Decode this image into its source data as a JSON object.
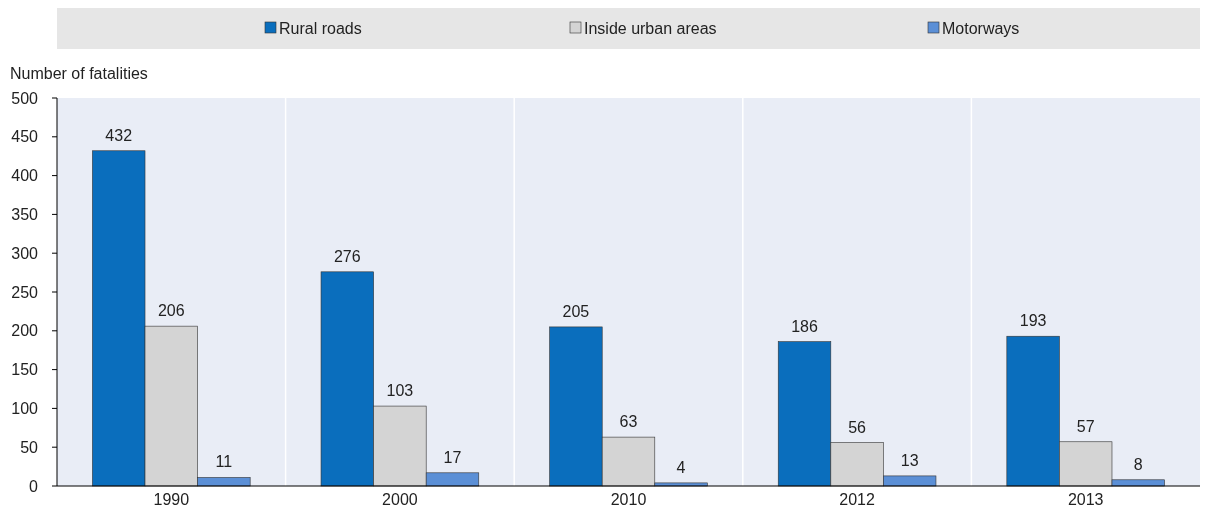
{
  "chart_data": {
    "type": "bar",
    "ylabel": "Number of fatalities",
    "categories": [
      "1990",
      "2000",
      "2010",
      "2012",
      "2013"
    ],
    "series": [
      {
        "name": "Rural roads",
        "color": "#0a6ebd",
        "values": [
          432,
          276,
          205,
          186,
          193
        ]
      },
      {
        "name": "Inside urban areas",
        "color": "#d4d4d4",
        "values": [
          206,
          103,
          63,
          56,
          57
        ]
      },
      {
        "name": "Motorways",
        "color": "#5b8fd6",
        "values": [
          11,
          17,
          4,
          13,
          8
        ]
      }
    ],
    "ylim": [
      0,
      500
    ],
    "yticks": [
      0,
      50,
      100,
      150,
      200,
      250,
      300,
      350,
      400,
      450,
      500
    ],
    "data_labels": true,
    "legend": "top",
    "grid": false
  }
}
